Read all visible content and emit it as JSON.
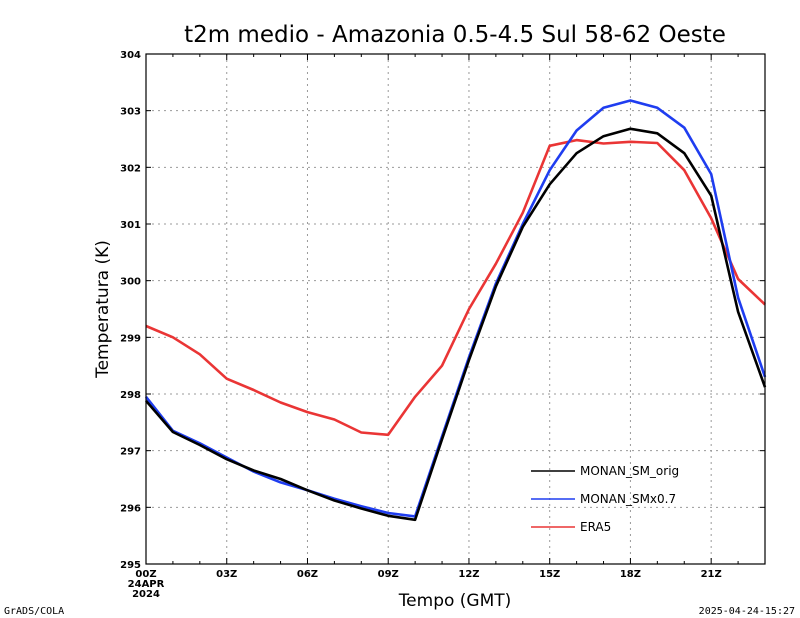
{
  "chart_data": {
    "type": "line",
    "title": "t2m medio - Amazonia  0.5-4.5 Sul  58-62 Oeste",
    "xlabel": "Tempo (GMT)",
    "ylabel": "Temperatura (K)",
    "ylim": [
      295,
      304
    ],
    "xlim": [
      0,
      23
    ],
    "yticks": [
      295,
      296,
      297,
      298,
      299,
      300,
      301,
      302,
      303,
      304
    ],
    "xticks": [
      {
        "x": 0,
        "label": "00Z",
        "sub1": "24APR",
        "sub2": "2024"
      },
      {
        "x": 3,
        "label": "03Z"
      },
      {
        "x": 6,
        "label": "06Z"
      },
      {
        "x": 9,
        "label": "09Z"
      },
      {
        "x": 12,
        "label": "12Z"
      },
      {
        "x": 15,
        "label": "15Z"
      },
      {
        "x": 18,
        "label": "18Z"
      },
      {
        "x": 21,
        "label": "21Z"
      }
    ],
    "grid": true,
    "legend_position": "bottom-right",
    "x": [
      0,
      1,
      2,
      3,
      4,
      5,
      6,
      7,
      8,
      9,
      10,
      11,
      12,
      13,
      14,
      15,
      16,
      17,
      18,
      19,
      20,
      21,
      22,
      23
    ],
    "series": [
      {
        "name": "MONAN_SM_orig",
        "color": "#000000",
        "values": [
          297.88,
          297.33,
          297.1,
          296.85,
          296.65,
          296.5,
          296.3,
          296.12,
          295.98,
          295.85,
          295.78,
          297.2,
          298.6,
          299.9,
          300.95,
          301.7,
          302.25,
          302.55,
          302.68,
          302.6,
          302.25,
          301.5,
          299.45,
          298.12
        ]
      },
      {
        "name": "MONAN_SMx0.7",
        "color": "#1f3df0",
        "values": [
          297.95,
          297.35,
          297.13,
          296.88,
          296.63,
          296.44,
          296.3,
          296.15,
          296.02,
          295.9,
          295.84,
          297.25,
          298.65,
          299.95,
          301.0,
          301.95,
          302.65,
          303.05,
          303.18,
          303.05,
          302.7,
          301.88,
          299.7,
          298.3
        ]
      },
      {
        "name": "ERA5",
        "color": "#ea3535",
        "values": [
          299.2,
          299.0,
          298.7,
          298.27,
          298.07,
          297.85,
          297.68,
          297.55,
          297.32,
          297.28,
          297.95,
          298.5,
          299.5,
          300.3,
          301.2,
          302.38,
          302.48,
          302.42,
          302.45,
          302.43,
          301.95,
          301.1,
          300.03,
          299.58
        ]
      }
    ]
  },
  "footer": {
    "left": "GrADS/COLA",
    "right": "2025-04-24-15:27"
  }
}
